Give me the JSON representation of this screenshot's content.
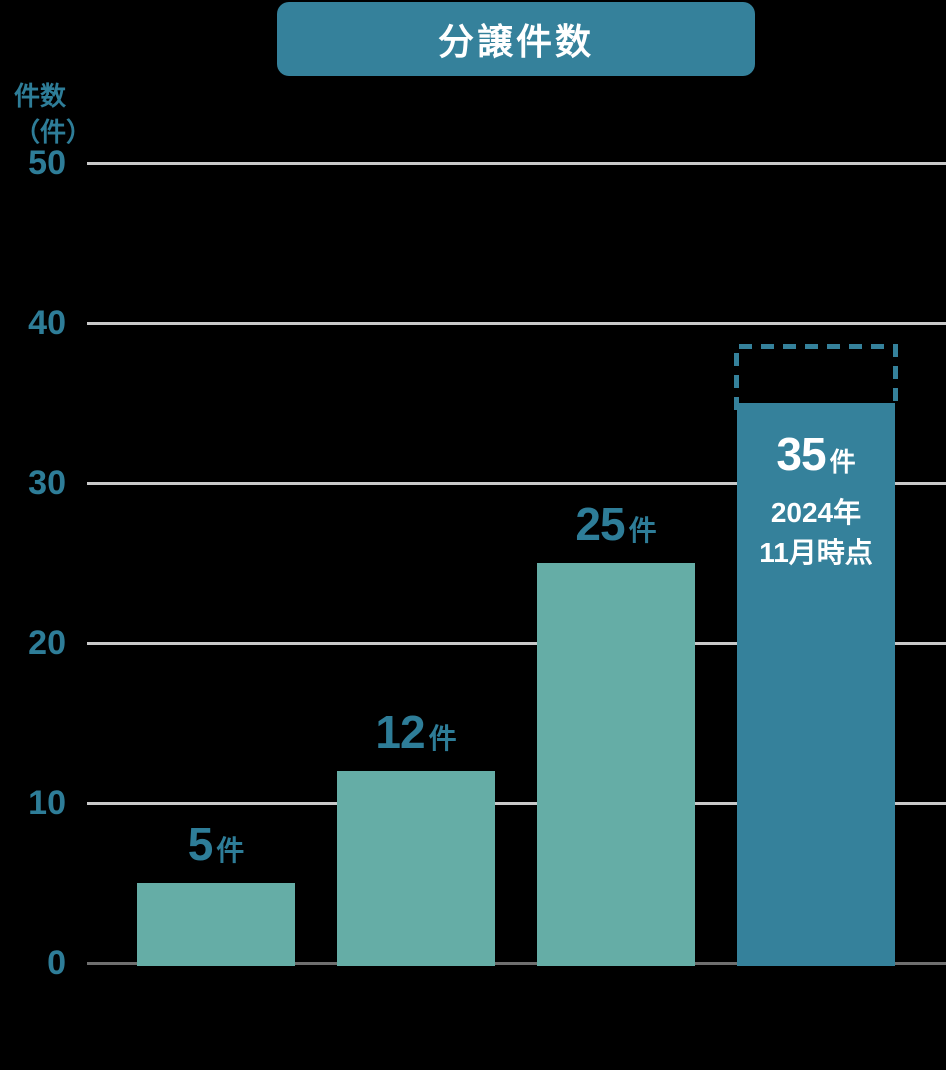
{
  "colors": {
    "background": "#000000",
    "badge": "#35819b",
    "bar": "#65ada6",
    "highlight_bar": "#35819b",
    "projection_outline": "#35819b",
    "label_text": "#2e7d98",
    "text_on_bar": "#ffffff",
    "gridline": "#c9c9c9",
    "axis_line": "#6f6f6f"
  },
  "chart_data": {
    "type": "bar",
    "title": "分譲件数",
    "ylabel": "件数（件）",
    "ylabel_lines": [
      "件数",
      "（件）"
    ],
    "unit_suffix": "件",
    "values": [
      5,
      12,
      25,
      35
    ],
    "value_labels": [
      "5件",
      "12件",
      "25件",
      "35件"
    ],
    "categories": [
      "",
      "",
      "",
      ""
    ],
    "yticks": [
      0,
      10,
      20,
      30,
      40,
      50
    ],
    "ylim": [
      0,
      50
    ],
    "grid": true,
    "legend": false,
    "highlight_index": 3,
    "annotation_lines": [
      "2024年",
      "11月時点"
    ],
    "projection_value": 38.5
  }
}
